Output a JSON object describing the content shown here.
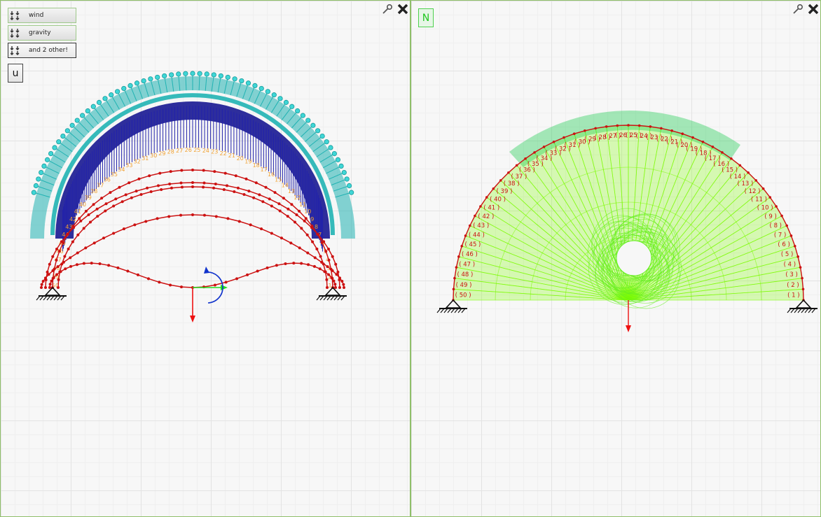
{
  "left_panel": {
    "load_cases": [
      {
        "label": "wind",
        "active": false
      },
      {
        "label": "gravity",
        "active": false
      },
      {
        "label": "and 2 other!",
        "active": true
      }
    ],
    "mode_button": "u",
    "icons": {
      "pin": "pin-icon",
      "close": "close-icon",
      "load": "load-case-icon",
      "support": "fixed-support-icon",
      "gizmo": "axis-gizmo-icon"
    }
  },
  "right_panel": {
    "mode_button": "N",
    "node_label_count": 50,
    "icons": {
      "pin": "pin-icon",
      "close": "close-icon",
      "support": "fixed-support-icon"
    }
  },
  "colors": {
    "panel_border": "#8fbf6a",
    "wind_load": "#20b2b2",
    "gravity_load": "#0a0a8c",
    "deformed": "#cc1111",
    "node_labels_left": "#f0a030",
    "axial_fill": "#7cfc00",
    "axial_dark": "#22cc55",
    "node_labels_right": "#cc1111",
    "n_button": "#1ec71e"
  }
}
